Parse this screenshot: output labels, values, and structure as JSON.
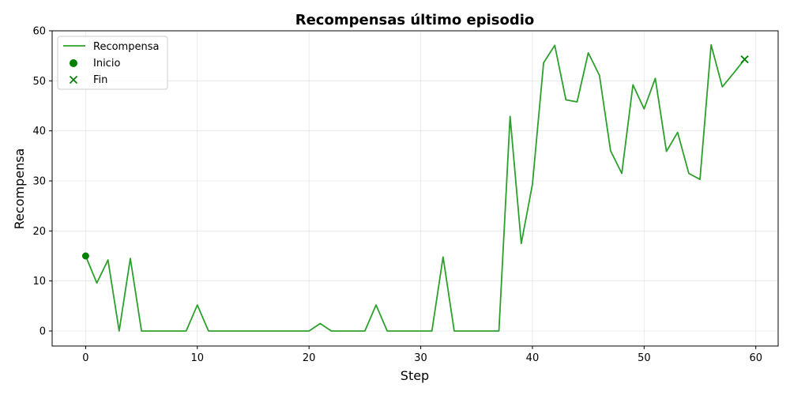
{
  "chart_data": {
    "type": "line",
    "title": "Recompensas último episodio",
    "xlabel": "Step",
    "ylabel": "Recompensa",
    "xlim": [
      -3,
      62
    ],
    "ylim": [
      -3,
      60
    ],
    "xticks": [
      0,
      10,
      20,
      30,
      40,
      50,
      60
    ],
    "yticks": [
      0,
      10,
      20,
      30,
      40,
      50,
      60
    ],
    "grid": true,
    "legend_position": "top-left",
    "color": "#2ca02c",
    "marker_color": "#008000",
    "series": [
      {
        "name": "Recompensa",
        "x": [
          0,
          1,
          2,
          3,
          4,
          5,
          6,
          7,
          8,
          9,
          10,
          11,
          12,
          13,
          14,
          15,
          16,
          17,
          18,
          19,
          20,
          21,
          22,
          23,
          24,
          25,
          26,
          27,
          28,
          29,
          30,
          31,
          32,
          33,
          34,
          35,
          36,
          37,
          38,
          39,
          40,
          41,
          42,
          43,
          44,
          45,
          46,
          47,
          48,
          49,
          50,
          51,
          52,
          53,
          54,
          55,
          56,
          57,
          58,
          59
        ],
        "values": [
          15,
          9.6,
          14.2,
          0,
          14.5,
          0,
          0,
          0,
          0,
          0,
          5.2,
          0,
          0,
          0,
          0,
          0,
          0,
          0,
          0,
          0,
          0,
          1.5,
          0,
          0,
          0,
          0,
          5.2,
          0,
          0,
          0,
          0,
          0,
          14.8,
          0,
          0,
          0,
          0,
          0,
          42.9,
          17.5,
          29.3,
          53.6,
          57.1,
          46.2,
          45.8,
          55.6,
          51.1,
          36,
          31.5,
          49.2,
          44.4,
          50.5,
          35.9,
          39.7,
          31.5,
          30.3,
          57.2,
          48.8,
          51.5,
          54.3
        ]
      }
    ],
    "markers": [
      {
        "name": "Inicio",
        "x": 0,
        "y": 15,
        "symbol": "circle"
      },
      {
        "name": "Fin",
        "x": 59,
        "y": 54.3,
        "symbol": "x"
      }
    ]
  }
}
